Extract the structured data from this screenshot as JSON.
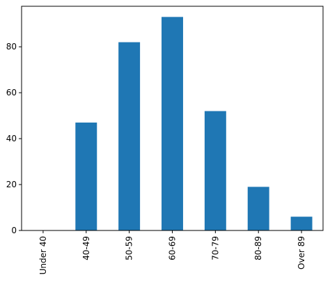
{
  "chart_data": {
    "type": "bar",
    "categories": [
      "Under 40",
      "40-49",
      "50-59",
      "60-69",
      "70-79",
      "80-89",
      "Over 89"
    ],
    "values": [
      0,
      47,
      82,
      93,
      52,
      19,
      6
    ],
    "color": "#1f77b4",
    "ylim": [
      0,
      97.65
    ],
    "yticks": [
      0,
      20,
      40,
      60,
      80
    ],
    "grid": false
  }
}
